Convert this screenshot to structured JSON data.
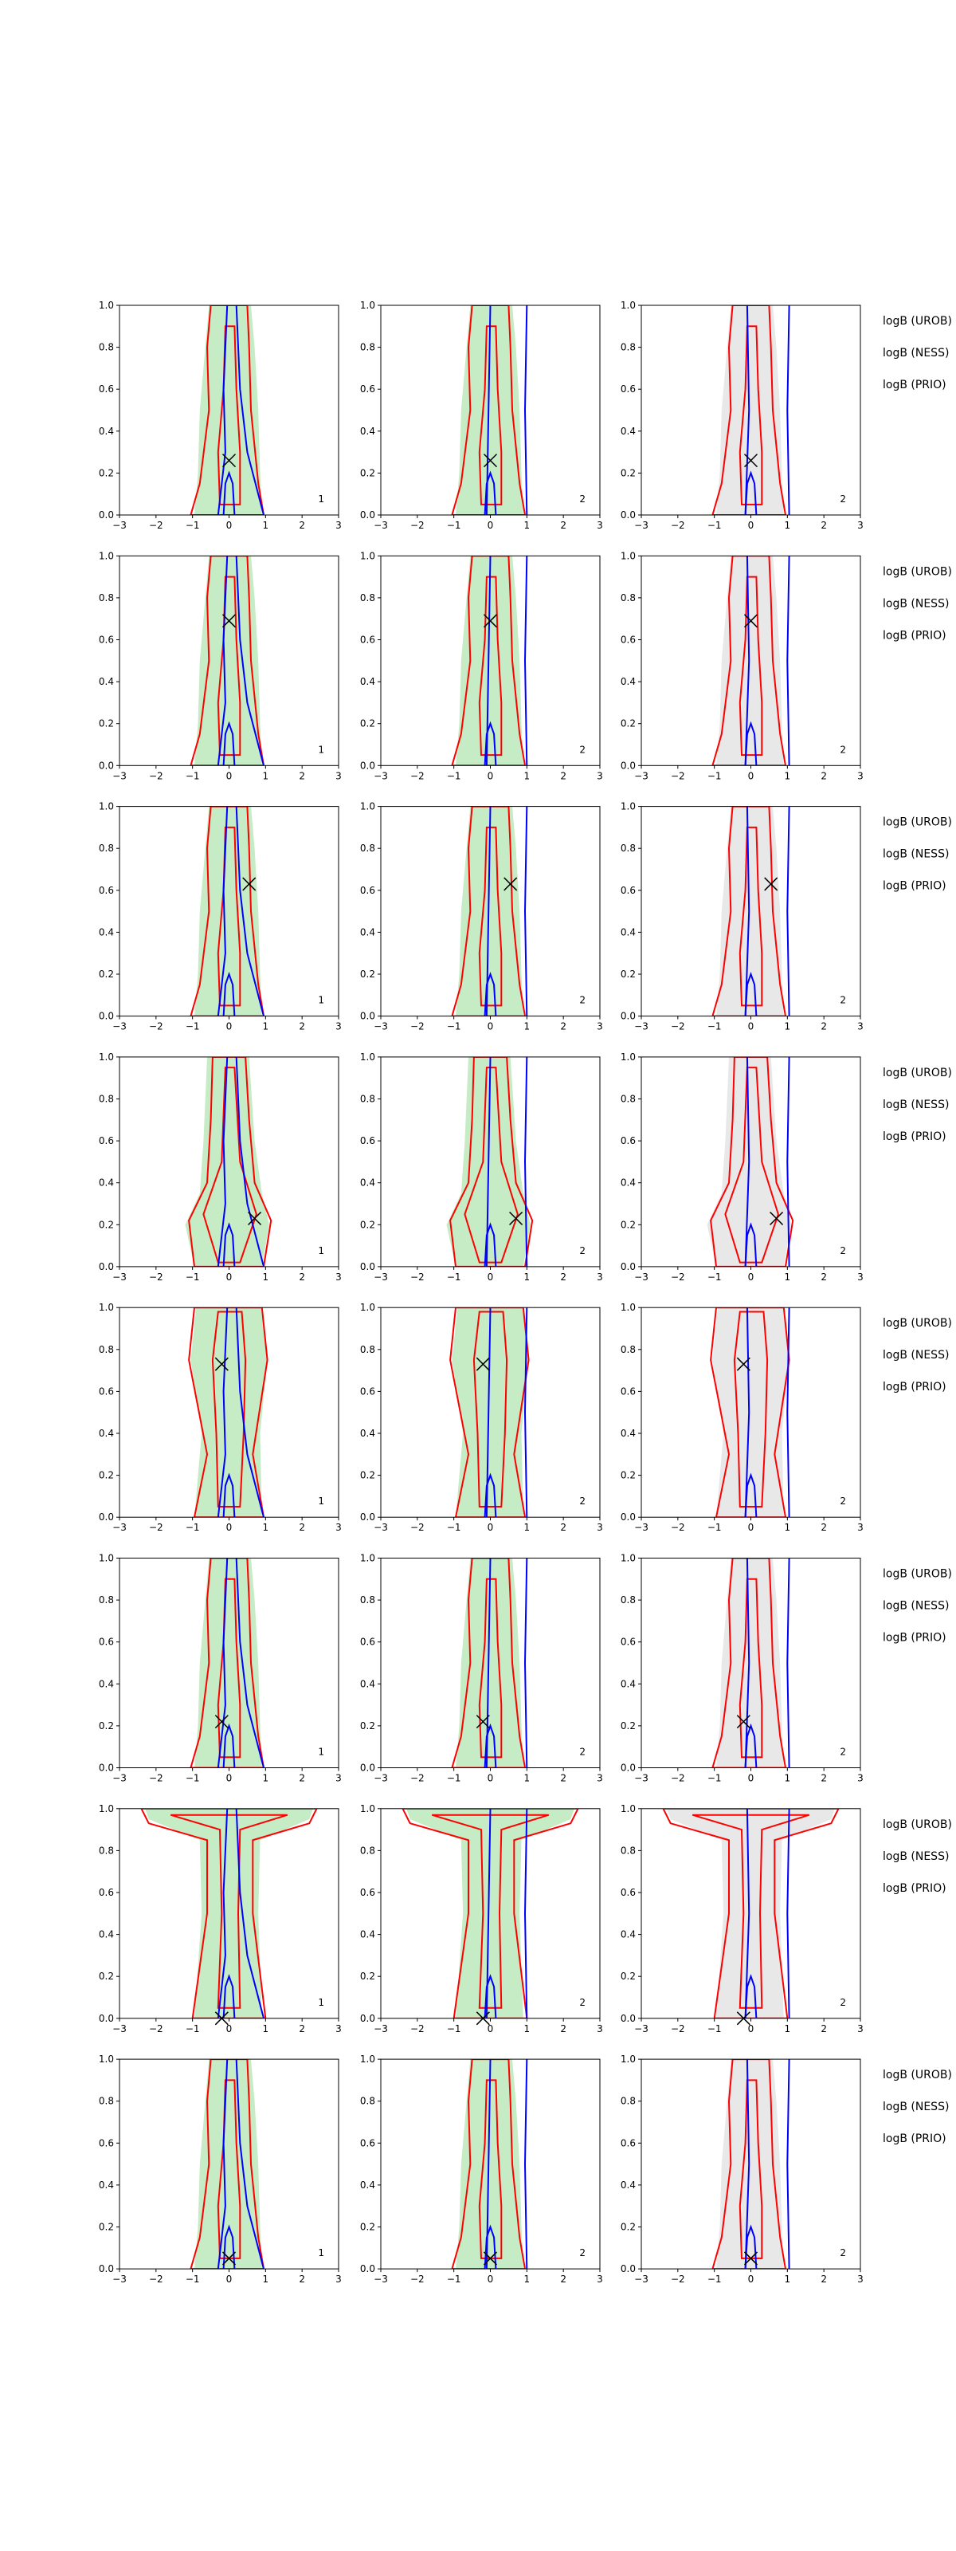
{
  "figure": {
    "background": "#ffffff",
    "colors": {
      "red": "#ff0000",
      "blue": "#0000ff",
      "green_fill": "#9ee09e",
      "grey_fill": "#d9d9d9",
      "marker": "#000000",
      "axis": "#000000"
    },
    "right_labels": [
      "logB (UROB)",
      "logB (NESS)",
      "logB (PRIO)"
    ]
  },
  "chart_data": {
    "type": "contour",
    "layout": "8 rows x 3 columns of panels, annotation text to the right of each row",
    "xlim": [
      -3,
      3
    ],
    "ylim": [
      0,
      1
    ],
    "xticks": [
      -3,
      -2,
      -1,
      0,
      1,
      2,
      3
    ],
    "yticks": [
      0.0,
      0.2,
      0.4,
      0.6,
      0.8,
      1.0
    ],
    "xtick_labels": [
      "−3",
      "−2",
      "−1",
      "0",
      "1",
      "2",
      "3"
    ],
    "ytick_labels": [
      "0.0",
      "0.2",
      "0.4",
      "0.6",
      "0.8",
      "1.0"
    ],
    "grid": false,
    "column_corner_labels": [
      "1",
      "2",
      "2"
    ],
    "column_fill": [
      "green",
      "green",
      "grey"
    ],
    "rows": [
      {
        "marker": [
          0.0,
          0.26
        ],
        "shape": "narrow"
      },
      {
        "marker": [
          0.0,
          0.69
        ],
        "shape": "narrow"
      },
      {
        "marker": [
          0.55,
          0.63
        ],
        "shape": "narrow"
      },
      {
        "marker": [
          0.7,
          0.23
        ],
        "shape": "bulge-low"
      },
      {
        "marker": [
          -0.2,
          0.73
        ],
        "shape": "bulge-high"
      },
      {
        "marker": [
          -0.2,
          0.22
        ],
        "shape": "narrow"
      },
      {
        "marker": [
          -0.2,
          0.0
        ],
        "shape": "top-flare"
      },
      {
        "marker": [
          0.0,
          0.05
        ],
        "shape": "narrow"
      }
    ]
  }
}
